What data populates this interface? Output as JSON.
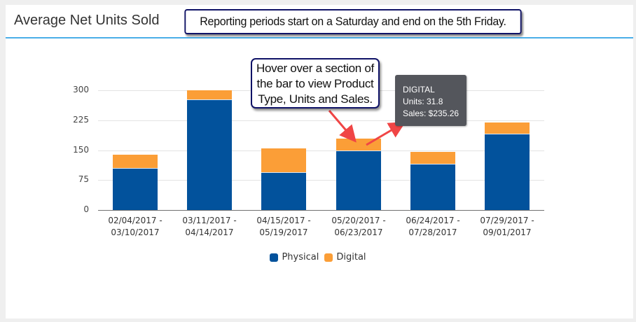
{
  "header": {
    "title": "Average Net Units Sold",
    "note": "Reporting periods start on a Saturday and end on the 5th Friday."
  },
  "callout": {
    "lines": [
      "Hover over a section of",
      "the bar to view Product",
      "Type, Units and Sales."
    ]
  },
  "tooltip": {
    "series": "DIGITAL",
    "units_line": "Units: 31.8",
    "sales_line": "Sales: $235.26"
  },
  "legend": {
    "items": [
      {
        "label": "Physical",
        "color": "#02529c"
      },
      {
        "label": "Digital",
        "color": "#fb9e37"
      }
    ]
  },
  "colors": {
    "physical": "#02529c",
    "digital": "#fb9e37",
    "header_rule": "#4aaee8",
    "tooltip_bg": "#54565c",
    "callout_border": "#0f1266",
    "arrow": "#f04545"
  },
  "chart_data": {
    "type": "bar",
    "stacked": true,
    "title": "Average Net Units Sold",
    "xlabel": "",
    "ylabel": "",
    "ylim": [
      0,
      300
    ],
    "yticks": [
      0,
      75,
      150,
      225,
      300
    ],
    "grid": true,
    "legend_position": "bottom",
    "categories": [
      [
        "02/04/2017 -",
        "03/10/2017"
      ],
      [
        "03/11/2017 -",
        "04/14/2017"
      ],
      [
        "04/15/2017 -",
        "05/19/2017"
      ],
      [
        "05/20/2017 -",
        "06/23/2017"
      ],
      [
        "06/24/2017 -",
        "07/28/2017"
      ],
      [
        "07/29/2017 -",
        "09/01/2017"
      ]
    ],
    "series": [
      {
        "name": "Physical",
        "color": "#02529c",
        "values": [
          103,
          275,
          93,
          148,
          114,
          189
        ]
      },
      {
        "name": "Digital",
        "color": "#fb9e37",
        "values": [
          35,
          25,
          61,
          31.8,
          31,
          30
        ]
      }
    ],
    "annotations": [
      {
        "type": "tooltip",
        "category_index": 3,
        "series": "DIGITAL",
        "units": 31.8,
        "sales": "$235.26"
      }
    ]
  }
}
